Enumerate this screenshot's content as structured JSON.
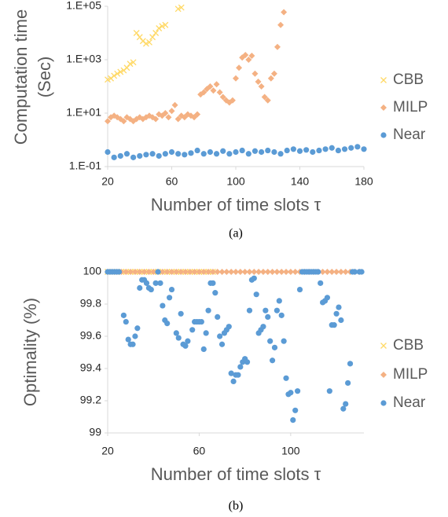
{
  "chart_data": [
    {
      "type": "scatter",
      "y_label": [
        "Computation time",
        "(Sec)"
      ],
      "x_label": "Number of time slots τ",
      "caption": "(a)",
      "xlim": [
        20,
        180
      ],
      "xticks": [
        20,
        60,
        100,
        140,
        180
      ],
      "ylim": [
        0.1,
        100000
      ],
      "log_y": true,
      "yticks": [
        {
          "value": 0.1,
          "label": "1.E-01"
        },
        {
          "value": 10,
          "label": "1.E+01"
        },
        {
          "value": 1000,
          "label": "1.E+03"
        },
        {
          "value": 100000,
          "label": "1.E+05"
        }
      ],
      "legend": "right",
      "series": [
        {
          "name": "CBB",
          "color": "#ffd966",
          "marker": "x",
          "x": [
            20,
            22,
            24,
            26,
            28,
            30,
            32,
            34,
            36,
            38,
            40,
            42,
            44,
            46,
            48,
            50,
            52,
            54,
            56,
            64,
            66
          ],
          "values": [
            180,
            200,
            250,
            300,
            350,
            400,
            500,
            700,
            800,
            10000,
            7000,
            5000,
            4000,
            4500,
            7000,
            10000,
            15000,
            18000,
            20000,
            80000,
            90000
          ]
        },
        {
          "name": "MILP",
          "color": "#f4b183",
          "marker": "diamond",
          "x": [
            20,
            22,
            24,
            26,
            28,
            30,
            32,
            34,
            36,
            38,
            40,
            42,
            44,
            46,
            48,
            50,
            52,
            54,
            56,
            58,
            60,
            62,
            64,
            66,
            68,
            70,
            72,
            74,
            76,
            78,
            80,
            82,
            84,
            86,
            88,
            90,
            92,
            94,
            96,
            98,
            100,
            102,
            104,
            106,
            108,
            110,
            112,
            114,
            116,
            118,
            120,
            122,
            124,
            126,
            128,
            130
          ],
          "values": [
            5,
            7,
            8,
            7,
            6,
            5,
            7,
            6,
            5,
            6,
            7,
            6,
            7,
            8,
            7,
            6,
            9,
            8,
            10,
            7,
            12,
            20,
            6,
            8,
            7,
            9,
            8,
            7,
            9,
            50,
            60,
            80,
            100,
            70,
            120,
            60,
            40,
            30,
            25,
            30,
            200,
            500,
            1200,
            1500,
            1000,
            1400,
            300,
            150,
            100,
            40,
            30,
            200,
            300,
            3000,
            20000,
            60000
          ]
        },
        {
          "name": "Near",
          "color": "#5b9bd5",
          "marker": "circle",
          "x": [
            20,
            24,
            28,
            32,
            36,
            40,
            44,
            48,
            52,
            56,
            60,
            64,
            68,
            72,
            76,
            80,
            84,
            88,
            92,
            96,
            100,
            104,
            108,
            112,
            116,
            120,
            124,
            128,
            132,
            136,
            140,
            144,
            148,
            152,
            156,
            160,
            164,
            168,
            172,
            176,
            180
          ],
          "values": [
            0.35,
            0.22,
            0.25,
            0.3,
            0.22,
            0.25,
            0.28,
            0.3,
            0.25,
            0.3,
            0.35,
            0.3,
            0.28,
            0.32,
            0.4,
            0.3,
            0.35,
            0.3,
            0.38,
            0.3,
            0.35,
            0.4,
            0.3,
            0.38,
            0.35,
            0.4,
            0.35,
            0.3,
            0.4,
            0.45,
            0.38,
            0.42,
            0.35,
            0.4,
            0.45,
            0.5,
            0.4,
            0.45,
            0.5,
            0.55,
            0.45
          ]
        }
      ]
    },
    {
      "type": "scatter",
      "y_label": [
        "Optimality (%)"
      ],
      "x_label": "Number of time slots τ",
      "caption": "(b)",
      "xlim": [
        20,
        132
      ],
      "xticks": [
        20,
        60,
        100
      ],
      "ylim": [
        99,
        100
      ],
      "log_y": false,
      "yticks": [
        99,
        99.2,
        99.4,
        99.6,
        99.8,
        100
      ],
      "legend": "right",
      "series": [
        {
          "name": "CBB",
          "color": "#ffd966",
          "marker": "x",
          "x": [
            20,
            22,
            24,
            26,
            28,
            30,
            32,
            34,
            36,
            38,
            40,
            42,
            44,
            46,
            48,
            50,
            52,
            54,
            56,
            58,
            60,
            62,
            64,
            66
          ],
          "values": [
            100,
            100,
            100,
            100,
            100,
            100,
            100,
            100,
            100,
            100,
            100,
            100,
            100,
            100,
            100,
            100,
            100,
            100,
            100,
            100,
            100,
            100,
            100,
            100
          ]
        },
        {
          "name": "MILP",
          "color": "#f4b183",
          "marker": "diamond",
          "x": [
            20,
            22,
            24,
            26,
            28,
            30,
            32,
            34,
            36,
            38,
            40,
            42,
            44,
            46,
            48,
            50,
            52,
            54,
            56,
            58,
            60,
            62,
            64,
            66,
            68,
            70,
            72,
            74,
            76,
            78,
            80,
            82,
            84,
            86,
            88,
            90,
            92,
            94,
            96,
            98,
            100,
            102,
            104,
            106,
            108,
            110,
            112,
            114,
            116,
            118,
            120,
            122,
            124,
            126,
            128,
            130
          ],
          "values": [
            100,
            100,
            100,
            100,
            100,
            100,
            100,
            100,
            100,
            100,
            100,
            100,
            100,
            100,
            100,
            100,
            100,
            100,
            100,
            100,
            100,
            100,
            100,
            100,
            100,
            100,
            100,
            100,
            100,
            100,
            100,
            100,
            100,
            100,
            100,
            100,
            100,
            100,
            100,
            100,
            100,
            100,
            100,
            100,
            100,
            100,
            100,
            100,
            100,
            100,
            100,
            100,
            100,
            100,
            100,
            100
          ]
        },
        {
          "name": "Near",
          "color": "#5b9bd5",
          "marker": "circle",
          "x": [
            20,
            21,
            22,
            23,
            24,
            25,
            27,
            28,
            29,
            30,
            31,
            32,
            33,
            34,
            35,
            36,
            37,
            38,
            39,
            41,
            42,
            43,
            44,
            45,
            46,
            47,
            48,
            50,
            51,
            52,
            53,
            54,
            55,
            57,
            58,
            59,
            60,
            61,
            62,
            63,
            64,
            65,
            66,
            67,
            68,
            69,
            70,
            71,
            72,
            73,
            74,
            75,
            76,
            77,
            78,
            79,
            80,
            81,
            82,
            83,
            84,
            85,
            86,
            87,
            88,
            89,
            90,
            91,
            92,
            93,
            94,
            95,
            96,
            97,
            98,
            99,
            100,
            101,
            102,
            103,
            104,
            105,
            106,
            107,
            108,
            109,
            110,
            111,
            112,
            113,
            114,
            115,
            116,
            117,
            118,
            119,
            120,
            121,
            122,
            123,
            124,
            125,
            126,
            127,
            128,
            130,
            131
          ],
          "values": [
            100,
            100,
            100,
            100,
            100,
            100,
            99.73,
            99.69,
            99.58,
            99.55,
            99.55,
            99.6,
            99.65,
            99.9,
            99.95,
            99.95,
            99.93,
            99.9,
            99.89,
            99.93,
            100,
            99.93,
            99.79,
            99.7,
            99.68,
            99.84,
            99.89,
            99.62,
            99.59,
            99.74,
            99.55,
            99.54,
            99.57,
            99.64,
            99.69,
            99.69,
            99.69,
            99.69,
            99.52,
            99.62,
            99.76,
            99.93,
            99.93,
            99.87,
            99.72,
            99.6,
            99.55,
            99.62,
            99.64,
            99.66,
            99.37,
            99.32,
            99.36,
            99.36,
            99.41,
            99.44,
            99.46,
            99.44,
            99.76,
            99.95,
            99.96,
            99.86,
            99.62,
            99.64,
            99.66,
            99.76,
            99.72,
            99.57,
            99.45,
            99.53,
            99.76,
            99.82,
            99.73,
            99.57,
            99.34,
            99.24,
            99.25,
            99.08,
            99.14,
            99.26,
            99.89,
            100,
            100,
            100,
            100,
            100,
            100,
            100,
            100,
            99.93,
            99.81,
            99.82,
            99.84,
            99.26,
            99.67,
            99.67,
            99.74,
            99.78,
            99.7,
            99.15,
            99.18,
            99.31,
            99.43,
            100,
            100,
            100,
            100
          ]
        }
      ]
    }
  ]
}
